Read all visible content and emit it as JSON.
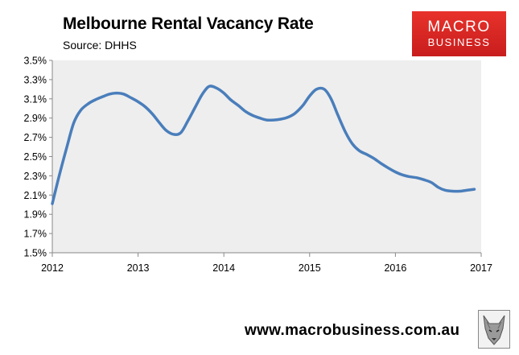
{
  "header": {
    "title": "Melbourne Rental Vacancy Rate",
    "subtitle": "Source: DHHS"
  },
  "logo": {
    "line1": "MACRO",
    "line2": "BUSINESS",
    "color": "#d42525"
  },
  "footer": {
    "website": "www.macrobusiness.com.au",
    "mascot_icon": "wolf-icon"
  },
  "chart_data": {
    "type": "line",
    "title": "Melbourne Rental Vacancy Rate",
    "xlabel": "",
    "ylabel": "",
    "xlim": [
      2012,
      2017
    ],
    "ylim": [
      1.5,
      3.5
    ],
    "x_ticks": [
      2012,
      2013,
      2014,
      2015,
      2016,
      2017
    ],
    "y_ticks": [
      1.5,
      1.7,
      1.9,
      2.1,
      2.3,
      2.5,
      2.7,
      2.9,
      3.1,
      3.3,
      3.5
    ],
    "y_tick_labels": [
      "1.5%",
      "1.7%",
      "1.9%",
      "2.1%",
      "2.3%",
      "2.5%",
      "2.7%",
      "2.9%",
      "3.1%",
      "3.3%",
      "3.5%"
    ],
    "grid": false,
    "plot_background": "#eeeeee",
    "series": [
      {
        "color": "#4a7ebb",
        "x": [
          2012.0,
          2012.08,
          2012.17,
          2012.25,
          2012.33,
          2012.42,
          2012.5,
          2012.58,
          2012.67,
          2012.75,
          2012.83,
          2012.92,
          2013.0,
          2013.08,
          2013.17,
          2013.25,
          2013.33,
          2013.42,
          2013.5,
          2013.58,
          2013.67,
          2013.75,
          2013.83,
          2013.92,
          2014.0,
          2014.08,
          2014.17,
          2014.25,
          2014.33,
          2014.42,
          2014.5,
          2014.58,
          2014.67,
          2014.75,
          2014.83,
          2014.92,
          2015.0,
          2015.08,
          2015.17,
          2015.25,
          2015.33,
          2015.42,
          2015.5,
          2015.58,
          2015.67,
          2015.75,
          2015.83,
          2015.92,
          2016.0,
          2016.08,
          2016.17,
          2016.25,
          2016.33,
          2016.42,
          2016.5,
          2016.58,
          2016.67,
          2016.75,
          2016.83,
          2016.92
        ],
        "y": [
          2.01,
          2.3,
          2.6,
          2.85,
          2.98,
          3.05,
          3.09,
          3.12,
          3.15,
          3.16,
          3.15,
          3.11,
          3.07,
          3.02,
          2.94,
          2.85,
          2.77,
          2.73,
          2.75,
          2.87,
          3.02,
          3.15,
          3.23,
          3.21,
          3.16,
          3.09,
          3.03,
          2.97,
          2.93,
          2.9,
          2.88,
          2.88,
          2.89,
          2.91,
          2.95,
          3.03,
          3.13,
          3.2,
          3.2,
          3.1,
          2.93,
          2.75,
          2.63,
          2.56,
          2.52,
          2.48,
          2.43,
          2.38,
          2.34,
          2.31,
          2.29,
          2.28,
          2.26,
          2.23,
          2.18,
          2.15,
          2.14,
          2.14,
          2.15,
          2.16
        ]
      }
    ]
  }
}
